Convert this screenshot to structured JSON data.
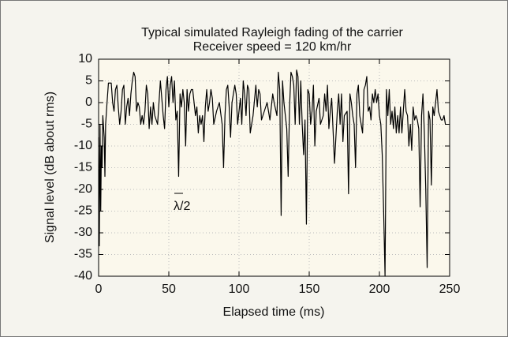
{
  "chart_data": {
    "type": "line",
    "title": "Typical simulated Rayleigh fading of the carrier",
    "subtitle": "Receiver speed = 120 km/hr",
    "xlabel": "Elapsed time (ms)",
    "ylabel": "Signal level (dB about rms)",
    "annotation": "λ/2",
    "color": "#000000",
    "grid": true,
    "xlim": [
      0,
      250
    ],
    "xticks": [
      0,
      50,
      100,
      150,
      200,
      250
    ],
    "ylim": [
      -40,
      10
    ],
    "yticks": [
      10,
      5,
      0,
      -5,
      -10,
      -15,
      -20,
      -25,
      -30,
      -35,
      -40
    ],
    "x": [
      0,
      0.5,
      1,
      1.5,
      2,
      2.5,
      3,
      4,
      4.5,
      5,
      6,
      7,
      9,
      10,
      11,
      12,
      13,
      14,
      15,
      16,
      17,
      18,
      19,
      20,
      21,
      22,
      23,
      24,
      25,
      26,
      27,
      28,
      29,
      30,
      31,
      32,
      33,
      34,
      35,
      36,
      37,
      38,
      39,
      40,
      42,
      44,
      46,
      47,
      48,
      49,
      50,
      51,
      52,
      53,
      54,
      55,
      56,
      57,
      58,
      59,
      60,
      61,
      62,
      63,
      64,
      65,
      66,
      67,
      68,
      69,
      70,
      71,
      72,
      73,
      74,
      75,
      76,
      77,
      78,
      79,
      80,
      81,
      82,
      84,
      86,
      88,
      89,
      90,
      91,
      92,
      93,
      94,
      95,
      97,
      98,
      99,
      100,
      101,
      102,
      103,
      104,
      105,
      106,
      107,
      108,
      110,
      112,
      113,
      114,
      115,
      116,
      118,
      120,
      122,
      124,
      125,
      127,
      128,
      129,
      130,
      131,
      132,
      134,
      135,
      136,
      137,
      138,
      139,
      140,
      141,
      142,
      143,
      144,
      145,
      146,
      147,
      148,
      149,
      150,
      151,
      152,
      153,
      154,
      155,
      157,
      158,
      160,
      161,
      162,
      163,
      164,
      165,
      166,
      168,
      170,
      171,
      172,
      173,
      174,
      175,
      177,
      178,
      179,
      180,
      181,
      182,
      183,
      184,
      185,
      186,
      188,
      189,
      190,
      191,
      192,
      193,
      194,
      195,
      196,
      197,
      198,
      199,
      200,
      201,
      202,
      203,
      204,
      205,
      206,
      207,
      208,
      209,
      210,
      211,
      212,
      213,
      214,
      215,
      216,
      217,
      218,
      219,
      220,
      221,
      222,
      223,
      224,
      225,
      226,
      227,
      228,
      229,
      230,
      231,
      232,
      233,
      234,
      235,
      236,
      237,
      238,
      239,
      240,
      241,
      242,
      243,
      244,
      245,
      246,
      247
    ],
    "values": [
      -8,
      -33,
      -5,
      -25,
      -10,
      -15,
      -3,
      -8,
      -17,
      -5,
      0,
      4.5,
      4.5,
      0,
      -2,
      3,
      4,
      -1,
      -5,
      -2,
      3,
      4,
      -5,
      -1,
      1,
      -3,
      2,
      5,
      7,
      6,
      -2,
      0,
      -1,
      -5,
      -3,
      -5,
      -2,
      4,
      2,
      -6,
      -1,
      -5,
      0,
      -3,
      -5,
      5,
      -3,
      -6,
      3,
      6,
      -1,
      4,
      6,
      0,
      5,
      -4,
      -2,
      -17,
      2,
      -1,
      3,
      0,
      -10,
      3,
      -2,
      2,
      3,
      3,
      0,
      -3,
      -1,
      -7,
      -3,
      -5,
      -3,
      -9,
      -1,
      3,
      -2,
      0,
      3,
      1,
      -5,
      -2,
      0,
      -5,
      -15,
      -3,
      3,
      4,
      -1,
      -8,
      0,
      4,
      2,
      -5,
      -2,
      1,
      -5,
      5,
      2,
      -3,
      4,
      3,
      -7,
      -3,
      4,
      -1,
      3,
      2,
      -4,
      -2,
      0,
      -4,
      2,
      0,
      -3,
      7,
      3,
      -26,
      5,
      0,
      -6,
      -17,
      -1,
      7,
      6,
      4,
      -5,
      7.5,
      6,
      -5,
      5,
      -5,
      -12,
      -4,
      -28,
      3,
      2,
      -5,
      -2,
      4,
      -10,
      -2,
      1,
      -5,
      -3,
      2,
      -2,
      4,
      -6,
      -2,
      1,
      -14,
      -2,
      2,
      -5,
      2,
      -9,
      -3,
      -2,
      -21,
      2,
      0,
      -3,
      -5,
      -15,
      2,
      4,
      -3,
      -7,
      3,
      4,
      6,
      -2,
      -1,
      -4,
      2,
      0,
      3,
      0,
      2,
      -3,
      -5,
      -12,
      -25,
      -40,
      3,
      -3,
      3,
      -5,
      -2,
      -6,
      -1,
      -7,
      -3,
      -7,
      -1,
      -7,
      -2,
      3,
      -2,
      -3,
      -10,
      -5,
      -11,
      -1,
      -4,
      -3,
      -4,
      -6,
      -24,
      -3,
      2,
      -7,
      -20,
      -38,
      -2,
      -4,
      -19,
      -1,
      -3,
      0,
      3,
      -2,
      -3,
      -4,
      -4,
      -3,
      -5
    ]
  }
}
